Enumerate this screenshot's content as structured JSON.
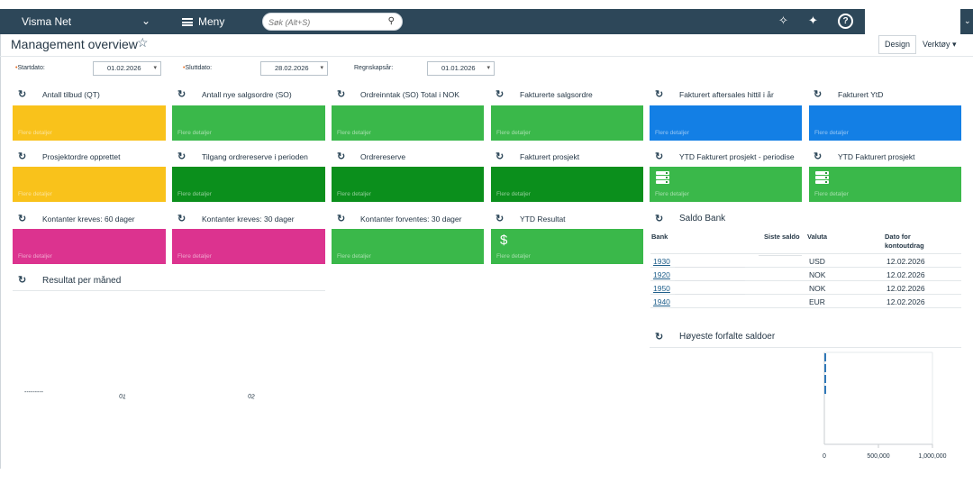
{
  "topbar": {
    "brand": "Visma Net",
    "menu_label": "Meny",
    "search_placeholder": "Søk (Alt+S)",
    "help_glyph": "?"
  },
  "header": {
    "title": "Management overview",
    "design_label": "Design",
    "tools_label": "Verktøy ▾"
  },
  "params": [
    {
      "label": "Startdato:",
      "value": "01.02.2026",
      "required": true
    },
    {
      "label": "Sluttdato:",
      "value": "28.02.2026",
      "required": true
    },
    {
      "label": "Regnskapsår:",
      "value": "01.01.2026",
      "required": false
    }
  ],
  "tiles": [
    {
      "title": "Antall tilbud (QT)",
      "color": "#f9c21b"
    },
    {
      "title": "Antall nye salgsordre (SO)",
      "color": "#3ab84a"
    },
    {
      "title": "Ordreinntak (SO) Total i NOK",
      "color": "#3ab84a"
    },
    {
      "title": "Fakturerte salgsordre",
      "color": "#3ab84a"
    },
    {
      "title": "Fakturert aftersales hittil i år",
      "color": "#137fe5"
    },
    {
      "title": "Fakturert YtD",
      "color": "#137fe5"
    },
    {
      "title": "Prosjektordre opprettet",
      "color": "#f9c21b"
    },
    {
      "title": "Tilgang ordrereserve i perioden",
      "color": "#0b8f1c"
    },
    {
      "title": "Ordrereserve",
      "color": "#0b8f1c"
    },
    {
      "title": "Fakturert prosjekt",
      "color": "#0b8f1c"
    },
    {
      "title": "YTD Fakturert prosjekt - periodise",
      "color": "#3ab84a"
    },
    {
      "title": "YTD Fakturert prosjekt",
      "color": "#3ab84a"
    },
    {
      "title": "Kontanter kreves: 60 dager",
      "color": "#dc338f"
    },
    {
      "title": "Kontanter kreves: 30 dager",
      "color": "#dc338f"
    },
    {
      "title": "Kontanter forventes: 30 dager",
      "color": "#3ab84a"
    },
    {
      "title": "YTD Resultat",
      "color": "#3ab84a"
    }
  ],
  "more_label": "Flere detaljer",
  "dollar_glyph": "$",
  "resultat": {
    "title": "Resultat per måned",
    "legend_dash": "---------",
    "x_ticks": [
      "01",
      "02"
    ]
  },
  "saldo_bank": {
    "title": "Saldo Bank",
    "headers": {
      "bank": "Bank",
      "siste": "Siste saldo",
      "valuta": "Valuta",
      "dato": "Dato for kontoutdrag"
    },
    "rows": [
      {
        "bank": "1930",
        "valuta": "USD",
        "dato": "12.02.2026"
      },
      {
        "bank": "1920",
        "valuta": "NOK",
        "dato": "12.02.2026"
      },
      {
        "bank": "1950",
        "valuta": "NOK",
        "dato": "12.02.2026"
      },
      {
        "bank": "1940",
        "valuta": "EUR",
        "dato": "12.02.2026"
      }
    ]
  },
  "hoyeste": {
    "title": "Høyeste forfalte saldoer",
    "x_ticks": [
      "0",
      "500,000",
      "1,000,000"
    ]
  }
}
